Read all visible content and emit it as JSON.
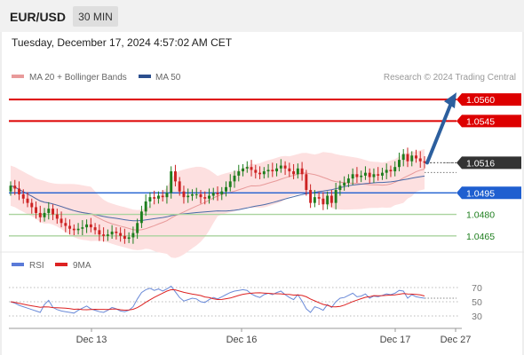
{
  "header": {
    "symbol": "EUR/USD",
    "timeframe": "30 MIN",
    "datetime": "Tuesday, December 17, 2024 4:57:02 AM CET"
  },
  "legend": {
    "ma20_bb": "MA 20 + Bollinger Bands",
    "ma50": "MA 50",
    "source": "Research © 2024 Trading Central"
  },
  "colors": {
    "resistance": "#dd0000",
    "current": "#333333",
    "pivot": "#1f5fd0",
    "support": "#1e7e1e",
    "up_candle": "#1e7e1e",
    "down_candle": "#cc2222",
    "bollinger_fill": "#fde0e0",
    "ma20": "#e89a9a",
    "ma50": "#4a6aa8",
    "arrow": "#2c5f9e",
    "rsi": "#6a8ad8",
    "rsi_ma": "#dd2222"
  },
  "chart_data": [
    {
      "type": "candlestick",
      "title": "EUR/USD",
      "timeframe": "30 MIN",
      "x_ticks": [
        "Dec 13",
        "Dec 16",
        "Dec 17",
        "Dec 27"
      ],
      "ylim": [
        1.0455,
        1.057
      ],
      "levels": [
        {
          "value": 1.056,
          "label": "1.0560",
          "kind": "resistance"
        },
        {
          "value": 1.0545,
          "label": "1.0545",
          "kind": "resistance"
        },
        {
          "value": 1.0516,
          "label": "1.0516",
          "kind": "current"
        },
        {
          "value": 1.0495,
          "label": "1.0495",
          "kind": "pivot"
        },
        {
          "value": 1.048,
          "label": "1.0480",
          "kind": "support"
        },
        {
          "value": 1.0465,
          "label": "1.0465",
          "kind": "support"
        }
      ],
      "projection": {
        "from": 1.0516,
        "to": 1.056
      },
      "series": [
        {
          "name": "EUR/USD",
          "close": [
            1.05,
            1.0498,
            1.0494,
            1.0491,
            1.0488,
            1.0485,
            1.0481,
            1.0478,
            1.0481,
            1.0484,
            1.048,
            1.0477,
            1.0474,
            1.0472,
            1.047,
            1.0469,
            1.047,
            1.0471,
            1.0473,
            1.0471,
            1.0469,
            1.0466,
            1.0465,
            1.0466,
            1.0468,
            1.0467,
            1.0465,
            1.0463,
            1.0464,
            1.0467,
            1.0474,
            1.0482,
            1.0489,
            1.0492,
            1.0491,
            1.0493,
            1.0492,
            1.0495,
            1.051,
            1.0503,
            1.0496,
            1.0492,
            1.0493,
            1.0494,
            1.0494,
            1.0492,
            1.0491,
            1.0493,
            1.0495,
            1.0494,
            1.0496,
            1.0499,
            1.0503,
            1.0507,
            1.051,
            1.0512,
            1.0513,
            1.0511,
            1.0509,
            1.0508,
            1.051,
            1.0511,
            1.051,
            1.0512,
            1.0514,
            1.0512,
            1.051,
            1.0508,
            1.0512,
            1.0508,
            1.0497,
            1.0488,
            1.0492,
            1.0491,
            1.0487,
            1.0493,
            1.0488,
            1.0497,
            1.05,
            1.0502,
            1.0505,
            1.0508,
            1.0506,
            1.0507,
            1.0509,
            1.0506,
            1.0508,
            1.0507,
            1.0509,
            1.0511,
            1.051,
            1.0513,
            1.0518,
            1.0522,
            1.0517,
            1.0521,
            1.0519,
            1.0517,
            1.0516
          ]
        },
        {
          "name": "MA 20 + Bollinger Bands"
        },
        {
          "name": "MA 50"
        }
      ]
    },
    {
      "type": "line",
      "title": "RSI",
      "ylim": [
        20,
        80
      ],
      "y_ticks": [
        30,
        50,
        70
      ],
      "series": [
        {
          "name": "RSI",
          "values": [
            50.0,
            48.0,
            45.0,
            43.0,
            41.0,
            39.0,
            37.0,
            35.0,
            46.0,
            52.0,
            42.0,
            39.0,
            37.0,
            36.0,
            35.0,
            34.0,
            38.0,
            41.0,
            44.0,
            40.0,
            38.0,
            36.0,
            35.0,
            38.0,
            42.0,
            40.0,
            37.0,
            36.0,
            38.0,
            43.0,
            54.0,
            63.0,
            67.0,
            69.0,
            66.0,
            68.0,
            65.0,
            68.0,
            72.0,
            64.0,
            56.0,
            51.0,
            53.0,
            55.0,
            54.0,
            50.0,
            49.0,
            53.0,
            56.0,
            54.0,
            57.0,
            60.0,
            63.0,
            65.0,
            66.0,
            67.0,
            66.0,
            61.0,
            58.0,
            56.0,
            60.0,
            62.0,
            60.0,
            63.0,
            65.0,
            60.0,
            56.0,
            53.0,
            60.0,
            51.0,
            40.0,
            35.0,
            43.0,
            41.0,
            38.0,
            46.0,
            42.0,
            50.0,
            55.0,
            56.0,
            59.0,
            62.0,
            57.0,
            58.0,
            61.0,
            55.0,
            58.0,
            57.0,
            59.0,
            61.0,
            60.0,
            62.0,
            66.0,
            65.0,
            55.0,
            60.0,
            57.0,
            56.0,
            55.0
          ]
        },
        {
          "name": "9MA",
          "values": [
            50.0,
            49.0,
            47.7,
            46.5,
            45.4,
            44.3,
            43.3,
            42.3,
            42.7,
            42.6,
            41.8,
            41.6,
            41.3,
            41.0,
            40.3,
            39.4,
            39.6,
            38.9,
            38.7,
            39.0,
            39.4,
            39.2,
            39.2,
            39.0,
            39.6,
            39.8,
            38.8,
            38.1,
            38.4,
            39.4,
            41.8,
            45.3,
            49.2,
            52.8,
            56.1,
            59.1,
            62.1,
            65.0,
            67.0,
            66.8,
            65.0,
            63.2,
            62.0,
            60.7,
            59.9,
            58.7,
            56.8,
            55.9,
            54.2,
            53.1,
            53.2,
            54.2,
            55.3,
            57.0,
            58.9,
            60.5,
            61.4,
            62.0,
            62.5,
            62.6,
            62.2,
            61.9,
            61.4,
            61.2,
            61.1,
            60.5,
            60.2,
            59.4,
            59.5,
            58.9,
            57.0,
            53.9,
            51.2,
            48.6,
            46.3,
            45.0,
            43.0,
            42.8,
            43.5,
            45.3,
            47.8,
            50.2,
            52.2,
            54.4,
            56.3,
            57.1,
            58.6,
            58.4,
            58.6,
            59.1,
            59.4,
            59.6,
            60.6,
            61.5,
            60.9,
            60.8,
            60.4,
            59.6,
            58.1
          ]
        }
      ],
      "legend": [
        "RSI",
        "9MA"
      ]
    }
  ]
}
